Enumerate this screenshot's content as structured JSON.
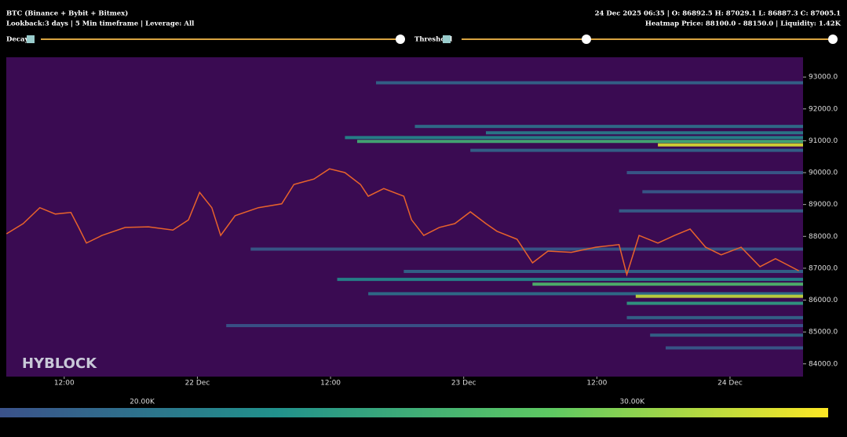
{
  "header": {
    "title": "BTC (Binance + Bybit + Bitmex)",
    "subtitle": "Lookback:3 days | 5 Min timeframe | Leverage: All",
    "ohlc": "24 Dec 2025 06:35 | O: 86892.5 H: 87029.1 L: 86887.3 C: 87005.1",
    "hover": "Heatmap Price: 88100.0 - 88150.0 | Liquidity: 1.42K"
  },
  "controls": {
    "decay": "Decay",
    "threshold": "Threshold"
  },
  "watermark": "HYBLOCK",
  "chart_data": {
    "type": "heatmap",
    "background": "#3a0b52",
    "xlim": [
      6.78,
      78.58
    ],
    "xticks": [
      {
        "value": 12,
        "label": "12:00"
      },
      {
        "value": 24,
        "label": "22 Dec"
      },
      {
        "value": 36,
        "label": "12:00"
      },
      {
        "value": 48,
        "label": "23 Dec"
      },
      {
        "value": 60,
        "label": "12:00"
      },
      {
        "value": 72,
        "label": "24 Dec"
      }
    ],
    "ylim": [
      83600,
      93620
    ],
    "yticks": [
      {
        "value": 84000,
        "label": "84000.0"
      },
      {
        "value": 85000,
        "label": "85000.0"
      },
      {
        "value": 86000,
        "label": "86000.0"
      },
      {
        "value": 87000,
        "label": "87000.0"
      },
      {
        "value": 88000,
        "label": "88000.0"
      },
      {
        "value": 89000,
        "label": "89000.0"
      },
      {
        "value": 90000,
        "label": "90000.0"
      },
      {
        "value": 91000,
        "label": "91000.0"
      },
      {
        "value": 92000,
        "label": "92000.0"
      },
      {
        "value": 93000,
        "label": "93000.0"
      }
    ],
    "colorscale": [
      "#3b528b",
      "#21918c",
      "#5ec962",
      "#fde725"
    ],
    "clim": [
      17.1,
      34.0
    ],
    "cticks": [
      {
        "value": 20,
        "label": "20.00K"
      },
      {
        "value": 30,
        "label": "30.00K"
      }
    ],
    "bands": [
      {
        "price": 92820,
        "start": 40.1,
        "value": 19
      },
      {
        "price": 91450,
        "start": 43.6,
        "value": 20
      },
      {
        "price": 91250,
        "start": 50.0,
        "value": 21
      },
      {
        "price": 91100,
        "start": 37.3,
        "value": 22
      },
      {
        "price": 90980,
        "start": 38.4,
        "value": 26
      },
      {
        "price": 90870,
        "start": 65.5,
        "value": 33
      },
      {
        "price": 90700,
        "start": 48.6,
        "value": 19
      },
      {
        "price": 90000,
        "start": 62.7,
        "value": 18
      },
      {
        "price": 89400,
        "start": 64.1,
        "value": 18
      },
      {
        "price": 88800,
        "start": 62.0,
        "value": 18.5
      },
      {
        "price": 87600,
        "start": 28.8,
        "value": 18
      },
      {
        "price": 86900,
        "start": 42.6,
        "value": 19
      },
      {
        "price": 86650,
        "start": 36.6,
        "value": 22
      },
      {
        "price": 86500,
        "start": 54.2,
        "value": 27
      },
      {
        "price": 86200,
        "start": 39.4,
        "value": 20
      },
      {
        "price": 86120,
        "start": 63.5,
        "value": 32
      },
      {
        "price": 85900,
        "start": 62.7,
        "value": 24
      },
      {
        "price": 85450,
        "start": 62.7,
        "value": 19
      },
      {
        "price": 85200,
        "start": 26.6,
        "value": 17.5
      },
      {
        "price": 84900,
        "start": 64.8,
        "value": 19
      },
      {
        "price": 84500,
        "start": 66.2,
        "value": 18
      }
    ],
    "price": {
      "color": "#e8632b",
      "x": [
        6.8,
        8.3,
        9.8,
        11.2,
        12.6,
        13.3,
        14.0,
        15.4,
        17.5,
        19.6,
        21.8,
        23.2,
        24.2,
        25.3,
        26.1,
        27.4,
        29.5,
        31.6,
        32.7,
        34.5,
        35.9,
        37.3,
        38.7,
        39.4,
        40.8,
        42.6,
        43.3,
        44.4,
        45.8,
        47.2,
        48.6,
        50.0,
        51.0,
        52.8,
        54.2,
        55.6,
        57.7,
        59.9,
        62.0,
        62.7,
        63.8,
        65.5,
        67.0,
        68.4,
        69.8,
        71.2,
        73.0,
        74.7,
        76.1,
        78.2
      ],
      "values": [
        88080,
        88400,
        88900,
        88700,
        88750,
        88280,
        87790,
        88030,
        88280,
        88300,
        88200,
        88520,
        89380,
        88900,
        88030,
        88650,
        88900,
        89020,
        89630,
        89800,
        90120,
        90000,
        89630,
        89260,
        89500,
        89260,
        88520,
        88030,
        88280,
        88400,
        88770,
        88400,
        88160,
        87910,
        87170,
        87540,
        87500,
        87660,
        87740,
        86800,
        88030,
        87790,
        88030,
        88230,
        87660,
        87420,
        87660,
        87050,
        87300,
        86920
      ]
    }
  }
}
